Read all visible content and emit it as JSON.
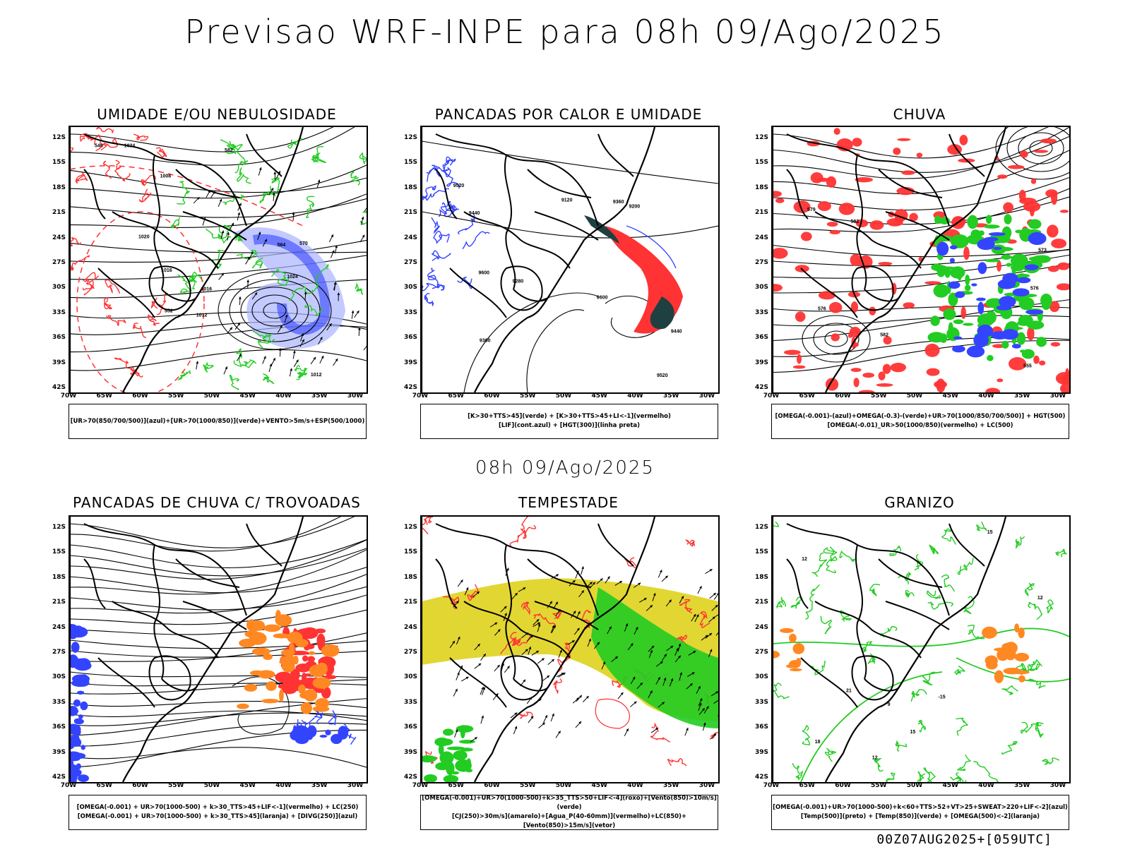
{
  "header": {
    "title": "Previsao WRF-INPE  para 08h 09/Ago/2025",
    "subtitle": "08h 09/Ago/2025",
    "footer": "00Z07AUG2025+[059UTC]"
  },
  "axes": {
    "lat_labels": [
      "12S",
      "15S",
      "18S",
      "21S",
      "24S",
      "27S",
      "30S",
      "33S",
      "36S",
      "39S",
      "42S"
    ],
    "lon_labels": [
      "70W",
      "65W",
      "60W",
      "55W",
      "50W",
      "45W",
      "40W",
      "35W",
      "30W"
    ]
  },
  "colors": {
    "red": "#ff3333",
    "green": "#22cc22",
    "blue": "#3344ff",
    "lightblue": "#aab4ff",
    "yellow": "#e2d633",
    "orange": "#ff8822",
    "dark": "#1f4040"
  },
  "panels": [
    {
      "id": "umidade",
      "title": "UMIDADE E/OU NEBULOSIDADE",
      "legend": [
        "[UR>70(850/700/500)](azul)+[UR>70(1000/850)](verde)+VENTO>5m/s+ESP(500/1000)"
      ],
      "contour_labels": [
        "1016",
        "1020",
        "1024",
        "1024",
        "1012",
        "1008",
        "1012",
        "1016",
        "552",
        "564",
        "570",
        "582",
        "546"
      ]
    },
    {
      "id": "pancadas_calor",
      "title": "PANCADAS POR CALOR E UMIDADE",
      "legend": [
        "[K>30+TTS>45](verde) + [K>30+TTS>45+LI<-1](vermelho)",
        "[LIF](cont.azul) + [HGT(300)](linha preta)"
      ],
      "contour_labels": [
        "9520",
        "9600",
        "9600",
        "9520",
        "9440",
        "9440",
        "9360",
        "9280",
        "9200",
        "9120",
        "9360"
      ]
    },
    {
      "id": "chuva",
      "title": "CHUVA",
      "legend": [
        "[OMEGA(-0.001)-(azul)+OMEGA(-0.3)-(verde)+UR>70(1000/850/700/500)] + HGT(500)",
        "[OMEGA(-0.01)_UR>50(1000/850)(vermelho) + LC(500)"
      ],
      "contour_labels": [
        "582",
        "576",
        "579",
        "582",
        "576",
        "573",
        "555"
      ]
    },
    {
      "id": "trovoadas",
      "title": "PANCADAS DE CHUVA C/ TROVOADAS",
      "legend": [
        "[OMEGA(-0.001) + UR>70(1000-500) + k>30_TTS>45+LIF<-1](vermelho) + LC(250)",
        "[OMEGA(-0.001) + UR>70(1000-500) + k>30_TTS>45](laranja) + [DIVG(250)](azul)"
      ],
      "contour_labels": []
    },
    {
      "id": "tempestade",
      "title": "TEMPESTADE",
      "legend": [
        "[OMEGA(-0.001)+UR>70(1000-500)+k>35_TTS>50+LIF<-4](roxo)+[Vento(850)>10m/s](verde)",
        "[CJ(250)>30m/s](amarelo)+[Agua_P(40-60mm)](vermelho)+LC(850)+[Vento(850)>15m/s](vetor)"
      ],
      "contour_labels": []
    },
    {
      "id": "granizo",
      "title": "GRANIZO",
      "legend": [
        "[OMEGA(-0.001)+UR>70(1000-500)+k<60+TTS>52+VT>25+SWEAT>220+LIF<-2](azul)",
        "[Temp(500)](preto) + [Temp(850)](verde) + [OMEGA(500)<-2](laranja)"
      ],
      "contour_labels": [
        "12",
        "12",
        "15",
        "18",
        "15",
        "12",
        "-15",
        "9",
        "21"
      ]
    }
  ]
}
